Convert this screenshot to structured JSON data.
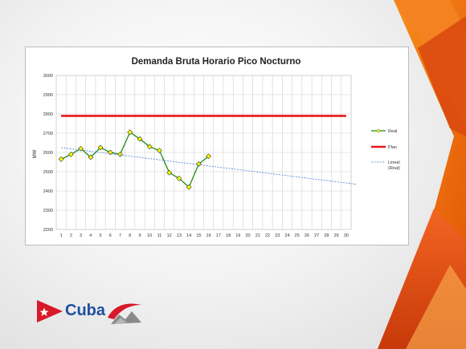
{
  "slide": {
    "brand": "Cuba"
  },
  "chart_data": {
    "type": "line",
    "title": "Demanda Bruta Horario Pico Nocturno",
    "ylabel": "MW",
    "xlabel": "",
    "x": [
      1,
      2,
      3,
      4,
      5,
      6,
      7,
      8,
      9,
      10,
      11,
      12,
      13,
      14,
      15,
      16,
      17,
      18,
      19,
      20,
      21,
      22,
      23,
      24,
      25,
      26,
      27,
      28,
      29,
      30
    ],
    "ylim": [
      2200,
      3000
    ],
    "yticks": [
      2200,
      2300,
      2400,
      2500,
      2600,
      2700,
      2800,
      2900,
      3000
    ],
    "grid": true,
    "legend_position": "right",
    "series": [
      {
        "name": "Real",
        "color": "#1e8c1e",
        "marker": "diamond",
        "marker_color": "#ffff00",
        "x": [
          1,
          2,
          3,
          4,
          5,
          6,
          7,
          8,
          9,
          10,
          11,
          12,
          13,
          14,
          15,
          16
        ],
        "values": [
          2565,
          2590,
          2620,
          2575,
          2625,
          2600,
          2590,
          2705,
          2670,
          2630,
          2610,
          2495,
          2465,
          2420,
          2540,
          2580
        ]
      },
      {
        "name": "Plan",
        "color": "#e8191a",
        "x": [
          1,
          30
        ],
        "values": [
          2790,
          2790
        ]
      },
      {
        "name": "Lineal\n(Real)",
        "color": "#4a7fd4",
        "dashed": true,
        "x": [
          1,
          31
        ],
        "values": [
          2625,
          2435
        ]
      }
    ]
  }
}
